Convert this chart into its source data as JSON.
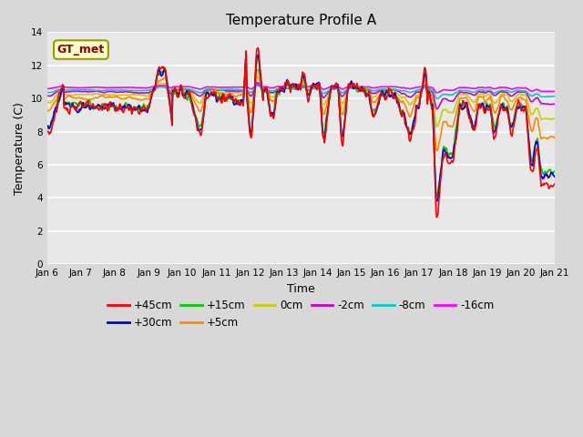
{
  "title": "Temperature Profile A",
  "xlabel": "Time",
  "ylabel": "Temperature (C)",
  "ylim": [
    0,
    14
  ],
  "yticks": [
    0,
    2,
    4,
    6,
    8,
    10,
    12,
    14
  ],
  "date_labels": [
    "Jan 6",
    "Jan 7",
    "Jan 8",
    "Jan 9",
    "Jan 10",
    "Jan 11",
    "Jan 12",
    "Jan 13",
    "Jan 14",
    "Jan 15",
    "Jan 16",
    "Jan 17",
    "Jan 18",
    "Jan 19",
    "Jan 20",
    "Jan 21"
  ],
  "annotation_text": "GT_met",
  "annotation_color": "#8b0000",
  "annotation_bg": "#ffffcc",
  "annotation_border": "#999900",
  "bg_color": "#d8d8d8",
  "plot_bg": "#e8e8e8",
  "series": [
    {
      "label": "+45cm",
      "color": "#ff0000",
      "lw": 1.2,
      "zorder": 7
    },
    {
      "label": "+30cm",
      "color": "#0000dd",
      "lw": 1.2,
      "zorder": 6
    },
    {
      "label": "+15cm",
      "color": "#00cc00",
      "lw": 1.2,
      "zorder": 5
    },
    {
      "label": "+5cm",
      "color": "#ff8800",
      "lw": 1.2,
      "zorder": 4
    },
    {
      "label": "0cm",
      "color": "#cccc00",
      "lw": 1.2,
      "zorder": 3
    },
    {
      "label": "-2cm",
      "color": "#cc00cc",
      "lw": 1.2,
      "zorder": 3
    },
    {
      "label": "-8cm",
      "color": "#00cccc",
      "lw": 1.2,
      "zorder": 3
    },
    {
      "label": "-16cm",
      "color": "#ff00ff",
      "lw": 1.2,
      "zorder": 3
    }
  ],
  "n_points": 720,
  "days": 15
}
